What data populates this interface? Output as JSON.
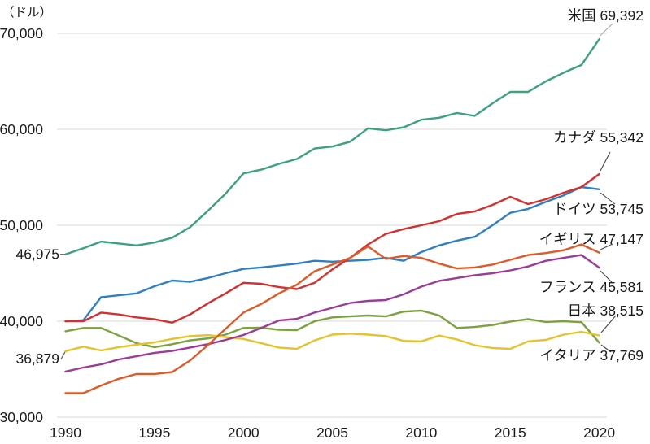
{
  "chart_data": {
    "type": "line",
    "title": "",
    "unit_label": "（ドル）",
    "x_label": "",
    "y_label": "",
    "x": [
      1990,
      1991,
      1992,
      1993,
      1994,
      1995,
      1996,
      1997,
      1998,
      1999,
      2000,
      2001,
      2002,
      2003,
      2004,
      2005,
      2006,
      2007,
      2008,
      2009,
      2010,
      2011,
      2012,
      2013,
      2014,
      2015,
      2016,
      2017,
      2018,
      2019,
      2020
    ],
    "x_ticks": [
      "1990",
      "1995",
      "2000",
      "2005",
      "2010",
      "2015",
      "2020"
    ],
    "x_tick_values": [
      1990,
      1995,
      2000,
      2005,
      2010,
      2015,
      2020
    ],
    "y_ticks": [
      "70,000",
      "60,000",
      "50,000",
      "40,000",
      "30,000"
    ],
    "y_tick_values": [
      70000,
      60000,
      50000,
      40000,
      30000
    ],
    "ylim": [
      30000,
      71000
    ],
    "xlim": [
      1990,
      2020
    ],
    "grid": "horizontal",
    "legend_position": "end-of-line-labels",
    "series": [
      {
        "key": "us",
        "name": "米国",
        "end_label": "米国 69,392",
        "end_value_label": "69,392",
        "color": "#3ba181",
        "values": [
          46975,
          47600,
          48300,
          48100,
          47900,
          48200,
          48700,
          49800,
          51500,
          53300,
          55400,
          55800,
          56400,
          56900,
          58000,
          58200,
          58700,
          60100,
          59900,
          60200,
          61000,
          61200,
          61700,
          61400,
          62700,
          63900,
          63900,
          65000,
          65900,
          66700,
          69392
        ]
      },
      {
        "key": "italy",
        "name": "イタリア",
        "end_label": "イタリア 37,769",
        "end_value_label": "37,769",
        "color": "#7ba23f",
        "values": [
          38950,
          39300,
          39300,
          38500,
          37700,
          37300,
          37600,
          38000,
          38200,
          38600,
          39300,
          39320,
          39100,
          39070,
          40000,
          40400,
          40500,
          40590,
          40500,
          41000,
          41100,
          40600,
          39300,
          39400,
          39600,
          39970,
          40220,
          39920,
          40000,
          39900,
          37769
        ]
      },
      {
        "key": "japan",
        "name": "日本",
        "end_label": "日本 38,515",
        "end_value_label": "38,515",
        "color": "#e7c32b",
        "values": [
          36879,
          37350,
          36950,
          37300,
          37550,
          37800,
          38150,
          38450,
          38550,
          38350,
          38150,
          37700,
          37250,
          37120,
          38000,
          38600,
          38700,
          38600,
          38450,
          37950,
          37900,
          38500,
          38100,
          37500,
          37200,
          37120,
          37900,
          38050,
          38600,
          38900,
          38515
        ]
      },
      {
        "key": "france",
        "name": "フランス",
        "end_label": "フランス 45,581",
        "end_value_label": "45,581",
        "color": "#9d3c98",
        "values": [
          34750,
          35170,
          35500,
          36020,
          36350,
          36700,
          36900,
          37250,
          37600,
          38050,
          38560,
          39300,
          40080,
          40250,
          40900,
          41400,
          41900,
          42120,
          42200,
          42800,
          43600,
          44200,
          44500,
          44800,
          45000,
          45300,
          45700,
          46300,
          46600,
          46900,
          45581
        ]
      },
      {
        "key": "germany",
        "name": "ドイツ",
        "end_label": "ドイツ 53,745",
        "end_value_label": "53,745",
        "color": "#2e80c2",
        "values": [
          40000,
          40100,
          42500,
          42700,
          42900,
          43640,
          44240,
          44100,
          44500,
          45000,
          45450,
          45600,
          45800,
          46000,
          46300,
          46200,
          46300,
          46400,
          46600,
          46300,
          47200,
          47900,
          48400,
          48800,
          50000,
          51300,
          51700,
          52440,
          53120,
          53980,
          53745
        ]
      },
      {
        "key": "canada",
        "name": "カナダ",
        "end_label": "カナダ 55,342",
        "end_value_label": "55,342",
        "color": "#d62f2f",
        "values": [
          40000,
          40000,
          40900,
          40700,
          40400,
          40200,
          39850,
          40700,
          41860,
          42900,
          44000,
          43900,
          43550,
          43350,
          44000,
          45400,
          46600,
          48000,
          49100,
          49600,
          50000,
          50420,
          51180,
          51440,
          52120,
          52970,
          52200,
          52710,
          53390,
          53980,
          55342
        ]
      },
      {
        "key": "uk",
        "name": "イギリス",
        "end_label": "イギリス 47,147",
        "end_value_label": "47,147",
        "color": "#e05a28",
        "values": [
          32500,
          32500,
          33300,
          34000,
          34500,
          34500,
          34700,
          35900,
          37500,
          39200,
          40900,
          41800,
          42900,
          43800,
          45200,
          45900,
          46600,
          47800,
          46500,
          46800,
          46600,
          46000,
          45500,
          45600,
          45900,
          46400,
          46900,
          47100,
          47400,
          48000,
          47147
        ]
      }
    ],
    "start_annotations": [
      {
        "series_key": "us",
        "series": "米国",
        "text": "46,975",
        "value": 46975
      },
      {
        "series_key": "japan",
        "series": "日本",
        "text": "36,879",
        "value": 36879
      }
    ]
  }
}
